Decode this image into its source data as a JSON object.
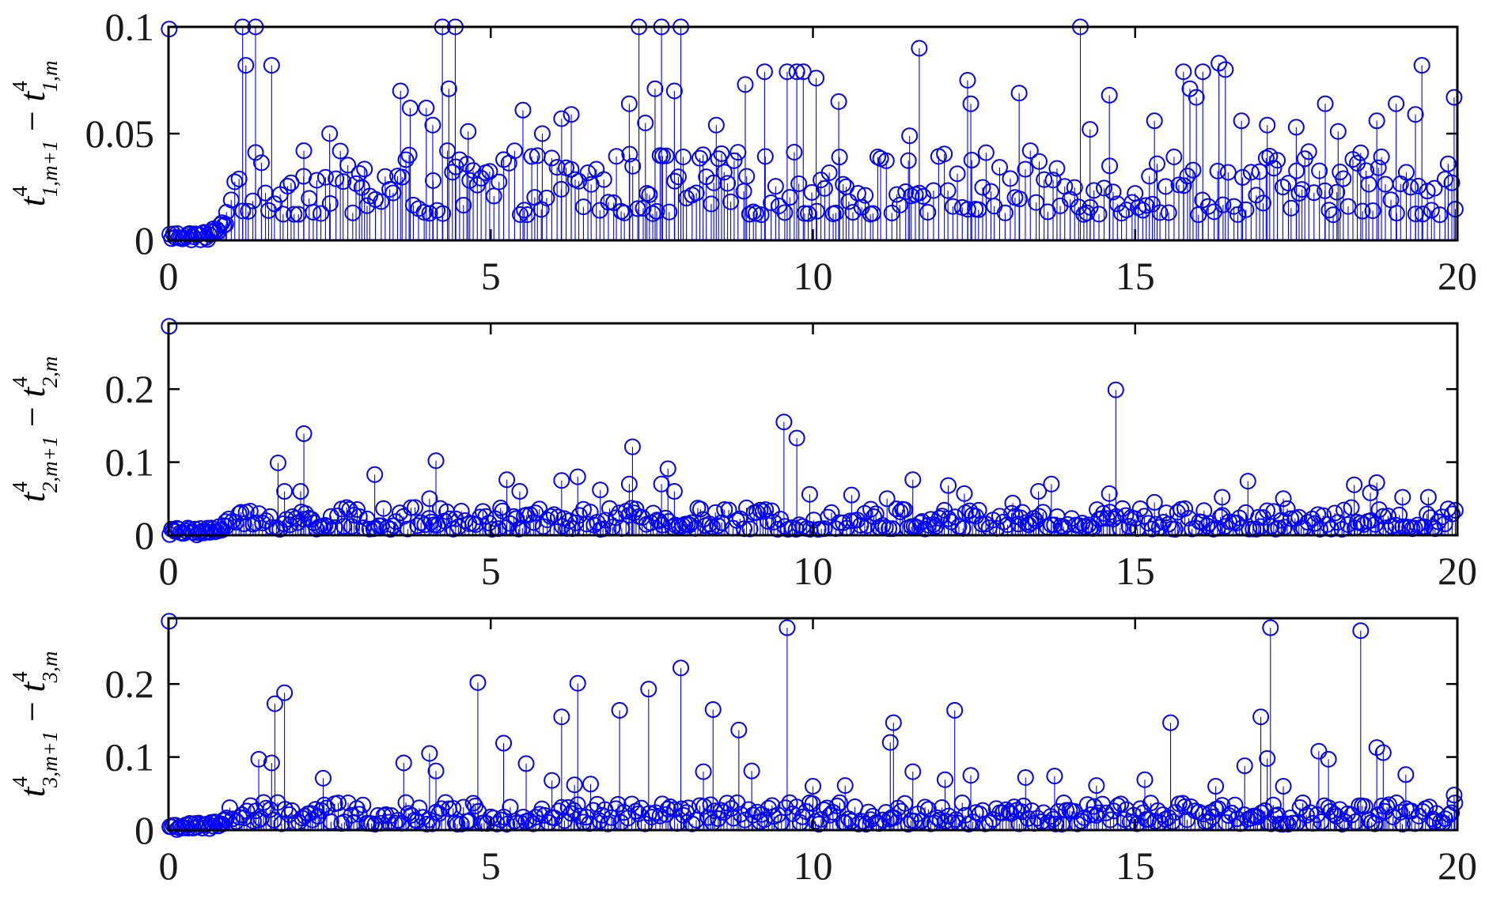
{
  "chart_data": [
    {
      "type": "stem",
      "ylabel": {
        "t": "t",
        "sup": "4",
        "sub1": "1,m+1",
        "minus": "−",
        "sub2": "1,m"
      },
      "xlim": [
        0,
        20
      ],
      "ylim": [
        0,
        0.1
      ],
      "xticks": [
        0,
        5,
        10,
        15,
        20
      ],
      "xtick_labels": [
        "0",
        "5",
        "10",
        "15",
        "20"
      ],
      "yticks": [
        0,
        0.05,
        0.1
      ],
      "ytick_labels": [
        "0",
        "0.05",
        "0.1"
      ],
      "color": "#0000ff",
      "marker": "circle",
      "peaks": [
        [
          0.01,
          0.099
        ],
        [
          1.15,
          0.1
        ],
        [
          1.2,
          0.082
        ],
        [
          1.35,
          0.1
        ],
        [
          1.6,
          0.082
        ],
        [
          2.1,
          0.042
        ],
        [
          2.5,
          0.05
        ],
        [
          3.6,
          0.07
        ],
        [
          3.75,
          0.062
        ],
        [
          4.0,
          0.062
        ],
        [
          4.1,
          0.054
        ],
        [
          4.25,
          0.1
        ],
        [
          4.35,
          0.071
        ],
        [
          4.45,
          0.1
        ],
        [
          4.65,
          0.051
        ],
        [
          5.5,
          0.061
        ],
        [
          5.8,
          0.05
        ],
        [
          6.1,
          0.057
        ],
        [
          6.25,
          0.059
        ],
        [
          7.15,
          0.064
        ],
        [
          7.3,
          0.1
        ],
        [
          7.4,
          0.055
        ],
        [
          7.55,
          0.071
        ],
        [
          7.65,
          0.1
        ],
        [
          7.85,
          0.07
        ],
        [
          7.95,
          0.1
        ],
        [
          8.5,
          0.054
        ],
        [
          8.95,
          0.073
        ],
        [
          9.25,
          0.079
        ],
        [
          9.6,
          0.079
        ],
        [
          9.75,
          0.079
        ],
        [
          9.85,
          0.079
        ],
        [
          10.05,
          0.076
        ],
        [
          10.4,
          0.065
        ],
        [
          11.5,
          0.049
        ],
        [
          11.65,
          0.09
        ],
        [
          12.4,
          0.075
        ],
        [
          12.45,
          0.064
        ],
        [
          13.2,
          0.069
        ],
        [
          14.15,
          0.1
        ],
        [
          14.3,
          0.052
        ],
        [
          14.6,
          0.068
        ],
        [
          15.3,
          0.056
        ],
        [
          15.75,
          0.079
        ],
        [
          15.85,
          0.071
        ],
        [
          15.95,
          0.067
        ],
        [
          16.05,
          0.079
        ],
        [
          16.3,
          0.083
        ],
        [
          16.4,
          0.08
        ],
        [
          16.65,
          0.056
        ],
        [
          17.05,
          0.054
        ],
        [
          17.5,
          0.053
        ],
        [
          17.95,
          0.064
        ],
        [
          18.15,
          0.051
        ],
        [
          18.5,
          0.041
        ],
        [
          18.75,
          0.056
        ],
        [
          19.05,
          0.064
        ],
        [
          19.35,
          0.059
        ],
        [
          19.45,
          0.082
        ],
        [
          19.95,
          0.067
        ]
      ]
    },
    {
      "type": "stem",
      "ylabel": {
        "t": "t",
        "sup": "4",
        "sub1": "2,m+1",
        "minus": "−",
        "sub2": "2,m"
      },
      "xlim": [
        0,
        20
      ],
      "ylim": [
        0,
        0.29
      ],
      "xticks": [
        0,
        5,
        10,
        15,
        20
      ],
      "xtick_labels": [
        "0",
        "5",
        "10",
        "15",
        "20"
      ],
      "yticks": [
        0,
        0.1,
        0.2
      ],
      "ytick_labels": [
        "0",
        "0.1",
        "0.2"
      ],
      "color": "#0000ff",
      "marker": "circle",
      "peaks": [
        [
          0.01,
          0.286
        ],
        [
          1.7,
          0.099
        ],
        [
          1.8,
          0.06
        ],
        [
          2.05,
          0.06
        ],
        [
          2.1,
          0.139
        ],
        [
          3.2,
          0.083
        ],
        [
          4.05,
          0.05
        ],
        [
          4.15,
          0.102
        ],
        [
          5.25,
          0.076
        ],
        [
          5.45,
          0.06
        ],
        [
          6.1,
          0.075
        ],
        [
          6.35,
          0.08
        ],
        [
          6.7,
          0.062
        ],
        [
          7.15,
          0.07
        ],
        [
          7.2,
          0.121
        ],
        [
          7.65,
          0.07
        ],
        [
          7.75,
          0.091
        ],
        [
          7.85,
          0.06
        ],
        [
          9.55,
          0.155
        ],
        [
          9.75,
          0.133
        ],
        [
          9.95,
          0.056
        ],
        [
          10.6,
          0.055
        ],
        [
          11.15,
          0.05
        ],
        [
          11.55,
          0.076
        ],
        [
          12.1,
          0.068
        ],
        [
          12.35,
          0.057
        ],
        [
          13.1,
          0.044
        ],
        [
          13.5,
          0.06
        ],
        [
          13.7,
          0.07
        ],
        [
          14.6,
          0.057
        ],
        [
          14.7,
          0.199
        ],
        [
          15.3,
          0.045
        ],
        [
          16.35,
          0.052
        ],
        [
          16.75,
          0.074
        ],
        [
          17.3,
          0.05
        ],
        [
          18.4,
          0.069
        ],
        [
          18.65,
          0.058
        ],
        [
          18.75,
          0.072
        ],
        [
          19.15,
          0.052
        ],
        [
          19.55,
          0.052
        ]
      ]
    },
    {
      "type": "stem",
      "ylabel": {
        "t": "t",
        "sup": "4",
        "sub1": "3,m+1",
        "minus": "−",
        "sub2": "3,m"
      },
      "xlim": [
        0,
        20
      ],
      "ylim": [
        0,
        0.29
      ],
      "xticks": [
        0,
        5,
        10,
        15,
        20
      ],
      "xtick_labels": [
        "0",
        "5",
        "10",
        "15",
        "20"
      ],
      "yticks": [
        0,
        0.1,
        0.2
      ],
      "ytick_labels": [
        "0",
        "0.1",
        "0.2"
      ],
      "color": "#0000ff",
      "marker": "circle",
      "peaks": [
        [
          0.01,
          0.286
        ],
        [
          1.4,
          0.097
        ],
        [
          1.6,
          0.092
        ],
        [
          1.65,
          0.173
        ],
        [
          1.8,
          0.188
        ],
        [
          2.4,
          0.071
        ],
        [
          3.65,
          0.092
        ],
        [
          4.05,
          0.105
        ],
        [
          4.15,
          0.081
        ],
        [
          4.8,
          0.202
        ],
        [
          5.2,
          0.119
        ],
        [
          5.55,
          0.091
        ],
        [
          5.95,
          0.068
        ],
        [
          6.1,
          0.155
        ],
        [
          6.3,
          0.062
        ],
        [
          6.35,
          0.201
        ],
        [
          6.55,
          0.063
        ],
        [
          7.0,
          0.164
        ],
        [
          7.45,
          0.193
        ],
        [
          7.95,
          0.222
        ],
        [
          8.3,
          0.08
        ],
        [
          8.45,
          0.165
        ],
        [
          8.85,
          0.137
        ],
        [
          9.05,
          0.081
        ],
        [
          9.6,
          0.277
        ],
        [
          10.0,
          0.06
        ],
        [
          10.5,
          0.061
        ],
        [
          11.2,
          0.12
        ],
        [
          11.25,
          0.147
        ],
        [
          11.55,
          0.08
        ],
        [
          12.05,
          0.069
        ],
        [
          12.2,
          0.164
        ],
        [
          12.45,
          0.075
        ],
        [
          13.3,
          0.072
        ],
        [
          13.75,
          0.074
        ],
        [
          14.4,
          0.061
        ],
        [
          15.15,
          0.069
        ],
        [
          15.55,
          0.147
        ],
        [
          16.25,
          0.06
        ],
        [
          16.7,
          0.088
        ],
        [
          16.95,
          0.155
        ],
        [
          17.05,
          0.098
        ],
        [
          17.1,
          0.277
        ],
        [
          17.3,
          0.06
        ],
        [
          17.85,
          0.108
        ],
        [
          18.0,
          0.097
        ],
        [
          18.5,
          0.273
        ],
        [
          18.75,
          0.113
        ],
        [
          18.85,
          0.106
        ],
        [
          19.2,
          0.076
        ],
        [
          19.95,
          0.048
        ]
      ]
    }
  ]
}
